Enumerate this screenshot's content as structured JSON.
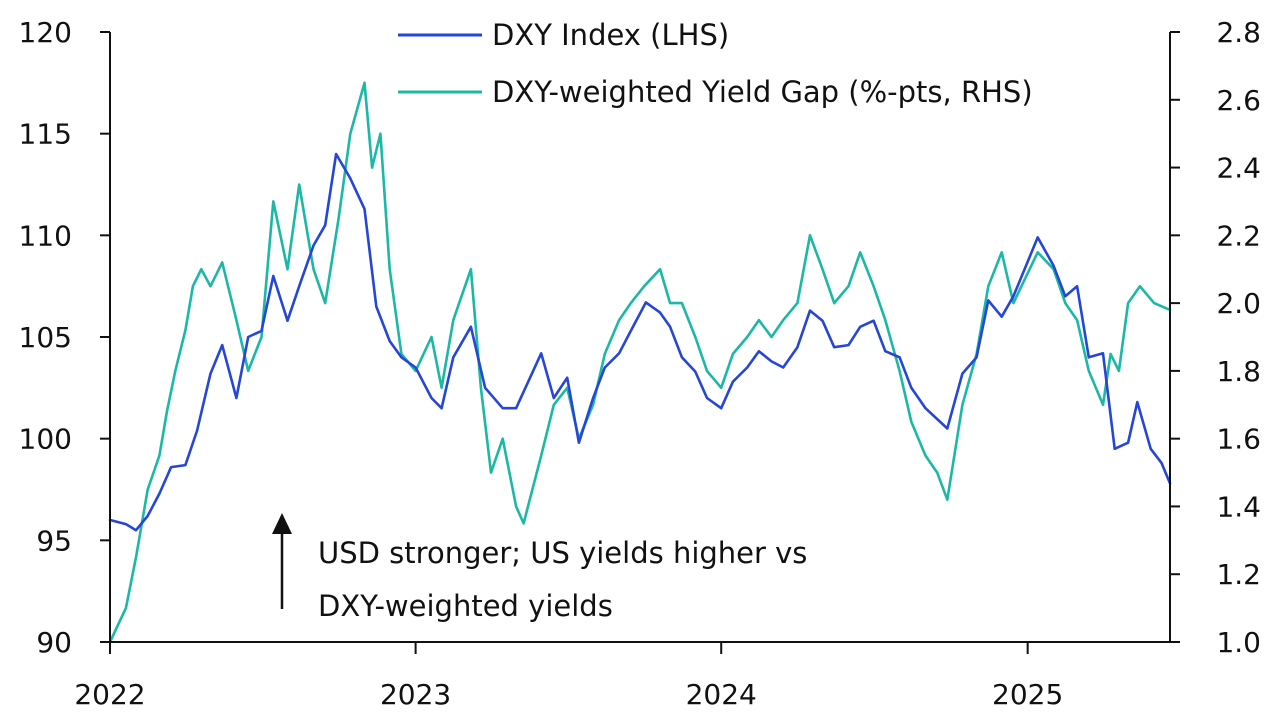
{
  "chart_data": {
    "type": "line",
    "title": "",
    "xlabel": "",
    "ylabel_left": "",
    "ylabel_right": "",
    "x_ticks": [
      "2022",
      "2023",
      "2024",
      "2025"
    ],
    "xlim": [
      "2022-01-01",
      "2025-06-20"
    ],
    "y_left": {
      "lim": [
        90,
        120
      ],
      "ticks": [
        90,
        95,
        100,
        105,
        110,
        115,
        120
      ]
    },
    "y_right": {
      "lim": [
        1.0,
        2.8
      ],
      "ticks": [
        "1.0",
        "1.2",
        "1.4",
        "1.6",
        "1.8",
        "2.0",
        "2.2",
        "2.4",
        "2.6",
        "2.8"
      ]
    },
    "grid": false,
    "legend": "top-center",
    "series": [
      {
        "name": "DXY Index (LHS)",
        "axis": "left",
        "color": "#2546d6",
        "points": [
          [
            "2022-01-01",
            96.0
          ],
          [
            "2022-01-20",
            95.8
          ],
          [
            "2022-02-01",
            95.5
          ],
          [
            "2022-02-15",
            96.2
          ],
          [
            "2022-03-01",
            97.3
          ],
          [
            "2022-03-15",
            98.6
          ],
          [
            "2022-04-01",
            98.7
          ],
          [
            "2022-04-15",
            100.4
          ],
          [
            "2022-05-01",
            103.2
          ],
          [
            "2022-05-15",
            104.6
          ],
          [
            "2022-06-01",
            102.0
          ],
          [
            "2022-06-15",
            105.0
          ],
          [
            "2022-07-01",
            105.3
          ],
          [
            "2022-07-15",
            108.0
          ],
          [
            "2022-08-01",
            105.8
          ],
          [
            "2022-08-15",
            107.5
          ],
          [
            "2022-09-01",
            109.5
          ],
          [
            "2022-09-15",
            110.5
          ],
          [
            "2022-09-28",
            114.0
          ],
          [
            "2022-10-15",
            112.8
          ],
          [
            "2022-11-01",
            111.3
          ],
          [
            "2022-11-15",
            106.5
          ],
          [
            "2022-12-01",
            104.8
          ],
          [
            "2022-12-15",
            104.0
          ],
          [
            "2023-01-01",
            103.5
          ],
          [
            "2023-01-20",
            102.0
          ],
          [
            "2023-02-01",
            101.5
          ],
          [
            "2023-02-15",
            104.0
          ],
          [
            "2023-03-08",
            105.5
          ],
          [
            "2023-03-25",
            102.5
          ],
          [
            "2023-04-15",
            101.5
          ],
          [
            "2023-05-01",
            101.5
          ],
          [
            "2023-05-31",
            104.2
          ],
          [
            "2023-06-15",
            102.0
          ],
          [
            "2023-07-01",
            103.0
          ],
          [
            "2023-07-15",
            99.8
          ],
          [
            "2023-08-01",
            102.0
          ],
          [
            "2023-08-15",
            103.5
          ],
          [
            "2023-09-01",
            104.2
          ],
          [
            "2023-09-15",
            105.3
          ],
          [
            "2023-10-03",
            106.7
          ],
          [
            "2023-10-20",
            106.2
          ],
          [
            "2023-11-01",
            105.5
          ],
          [
            "2023-11-15",
            104.0
          ],
          [
            "2023-12-01",
            103.3
          ],
          [
            "2023-12-15",
            102.0
          ],
          [
            "2024-01-01",
            101.5
          ],
          [
            "2024-01-15",
            102.8
          ],
          [
            "2024-02-01",
            103.5
          ],
          [
            "2024-02-15",
            104.3
          ],
          [
            "2024-03-01",
            103.8
          ],
          [
            "2024-03-15",
            103.5
          ],
          [
            "2024-04-01",
            104.5
          ],
          [
            "2024-04-16",
            106.3
          ],
          [
            "2024-05-01",
            105.8
          ],
          [
            "2024-05-15",
            104.5
          ],
          [
            "2024-06-01",
            104.6
          ],
          [
            "2024-06-15",
            105.5
          ],
          [
            "2024-07-01",
            105.8
          ],
          [
            "2024-07-15",
            104.3
          ],
          [
            "2024-08-01",
            104.0
          ],
          [
            "2024-08-15",
            102.5
          ],
          [
            "2024-09-01",
            101.5
          ],
          [
            "2024-09-27",
            100.5
          ],
          [
            "2024-10-15",
            103.2
          ],
          [
            "2024-11-01",
            104.0
          ],
          [
            "2024-11-15",
            106.8
          ],
          [
            "2024-12-01",
            106.0
          ],
          [
            "2024-12-15",
            107.0
          ],
          [
            "2025-01-13",
            109.9
          ],
          [
            "2025-02-01",
            108.5
          ],
          [
            "2025-02-15",
            107.0
          ],
          [
            "2025-03-01",
            107.5
          ],
          [
            "2025-03-15",
            104.0
          ],
          [
            "2025-04-01",
            104.2
          ],
          [
            "2025-04-15",
            99.5
          ],
          [
            "2025-05-01",
            99.8
          ],
          [
            "2025-05-12",
            101.8
          ],
          [
            "2025-05-28",
            99.5
          ],
          [
            "2025-06-10",
            98.8
          ],
          [
            "2025-06-20",
            97.8
          ]
        ]
      },
      {
        "name": "DXY-weighted Yield Gap (%-pts, RHS)",
        "axis": "right",
        "color": "#1bb8a6",
        "points": [
          [
            "2022-01-01",
            1.0
          ],
          [
            "2022-01-20",
            1.1
          ],
          [
            "2022-02-01",
            1.25
          ],
          [
            "2022-02-15",
            1.45
          ],
          [
            "2022-03-01",
            1.55
          ],
          [
            "2022-03-10",
            1.68
          ],
          [
            "2022-03-20",
            1.8
          ],
          [
            "2022-04-01",
            1.92
          ],
          [
            "2022-04-10",
            2.05
          ],
          [
            "2022-04-20",
            2.1
          ],
          [
            "2022-05-01",
            2.05
          ],
          [
            "2022-05-15",
            2.12
          ],
          [
            "2022-06-01",
            1.95
          ],
          [
            "2022-06-15",
            1.8
          ],
          [
            "2022-07-01",
            1.9
          ],
          [
            "2022-07-15",
            2.3
          ],
          [
            "2022-08-01",
            2.1
          ],
          [
            "2022-08-15",
            2.35
          ],
          [
            "2022-09-01",
            2.1
          ],
          [
            "2022-09-15",
            2.0
          ],
          [
            "2022-10-01",
            2.25
          ],
          [
            "2022-10-15",
            2.5
          ],
          [
            "2022-11-01",
            2.65
          ],
          [
            "2022-11-10",
            2.4
          ],
          [
            "2022-11-20",
            2.5
          ],
          [
            "2022-12-01",
            2.1
          ],
          [
            "2022-12-15",
            1.85
          ],
          [
            "2023-01-01",
            1.8
          ],
          [
            "2023-01-20",
            1.9
          ],
          [
            "2023-02-01",
            1.75
          ],
          [
            "2023-02-15",
            1.95
          ],
          [
            "2023-03-08",
            2.1
          ],
          [
            "2023-03-20",
            1.75
          ],
          [
            "2023-04-01",
            1.5
          ],
          [
            "2023-04-15",
            1.6
          ],
          [
            "2023-05-01",
            1.4
          ],
          [
            "2023-05-10",
            1.35
          ],
          [
            "2023-05-31",
            1.55
          ],
          [
            "2023-06-15",
            1.7
          ],
          [
            "2023-07-01",
            1.75
          ],
          [
            "2023-07-15",
            1.6
          ],
          [
            "2023-08-01",
            1.7
          ],
          [
            "2023-08-15",
            1.85
          ],
          [
            "2023-09-01",
            1.95
          ],
          [
            "2023-09-15",
            2.0
          ],
          [
            "2023-10-01",
            2.05
          ],
          [
            "2023-10-20",
            2.1
          ],
          [
            "2023-11-01",
            2.0
          ],
          [
            "2023-11-15",
            2.0
          ],
          [
            "2023-12-01",
            1.9
          ],
          [
            "2023-12-15",
            1.8
          ],
          [
            "2024-01-01",
            1.75
          ],
          [
            "2024-01-15",
            1.85
          ],
          [
            "2024-02-01",
            1.9
          ],
          [
            "2024-02-15",
            1.95
          ],
          [
            "2024-03-01",
            1.9
          ],
          [
            "2024-03-15",
            1.95
          ],
          [
            "2024-04-01",
            2.0
          ],
          [
            "2024-04-16",
            2.2
          ],
          [
            "2024-05-01",
            2.1
          ],
          [
            "2024-05-15",
            2.0
          ],
          [
            "2024-06-01",
            2.05
          ],
          [
            "2024-06-15",
            2.15
          ],
          [
            "2024-07-01",
            2.05
          ],
          [
            "2024-07-15",
            1.95
          ],
          [
            "2024-08-01",
            1.8
          ],
          [
            "2024-08-15",
            1.65
          ],
          [
            "2024-09-01",
            1.55
          ],
          [
            "2024-09-15",
            1.5
          ],
          [
            "2024-09-27",
            1.42
          ],
          [
            "2024-10-15",
            1.7
          ],
          [
            "2024-11-01",
            1.85
          ],
          [
            "2024-11-15",
            2.05
          ],
          [
            "2024-12-01",
            2.15
          ],
          [
            "2024-12-15",
            2.0
          ],
          [
            "2025-01-13",
            2.15
          ],
          [
            "2025-02-01",
            2.1
          ],
          [
            "2025-02-15",
            2.0
          ],
          [
            "2025-03-01",
            1.95
          ],
          [
            "2025-03-15",
            1.8
          ],
          [
            "2025-04-01",
            1.7
          ],
          [
            "2025-04-10",
            1.85
          ],
          [
            "2025-04-20",
            1.8
          ],
          [
            "2025-05-01",
            2.0
          ],
          [
            "2025-05-15",
            2.05
          ],
          [
            "2025-06-01",
            2.0
          ],
          [
            "2025-06-20",
            1.98
          ]
        ]
      }
    ],
    "annotation": {
      "text_line1": "USD stronger; US yields higher vs",
      "text_line2": "DXY-weighted yields",
      "arrow": "up"
    }
  }
}
